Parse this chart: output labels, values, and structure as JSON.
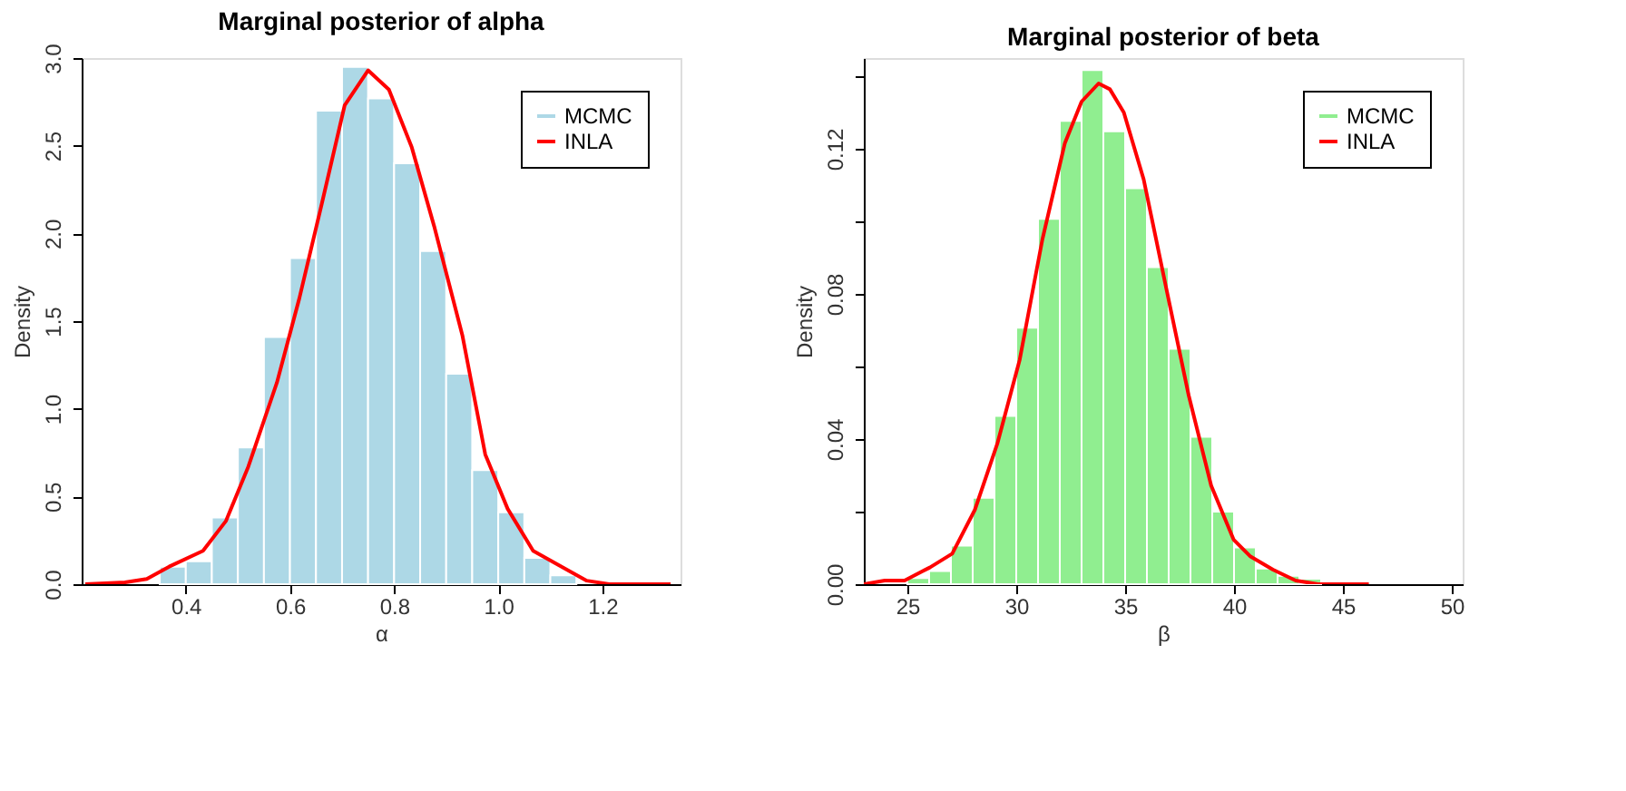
{
  "chart_data": [
    {
      "type": "histogram",
      "title": "Marginal posterior of alpha",
      "xlabel": "α",
      "ylabel": "Density",
      "xlim": [
        0.2,
        1.35
      ],
      "xticks": [
        0.4,
        0.6,
        0.8,
        {
          "value": 1.0,
          "label": "1.0"
        },
        1.2
      ],
      "ylim": [
        0,
        3.0
      ],
      "yticks": [
        {
          "value": 0,
          "label": "0.0"
        },
        0.5,
        {
          "value": 1,
          "label": "1.0"
        },
        1.5,
        {
          "value": 2,
          "label": "2.0"
        },
        2.5,
        {
          "value": 3,
          "label": "3.0"
        }
      ],
      "grid": false,
      "legend": "top right",
      "series": [
        {
          "name": "MCMC",
          "color": "#add8e6",
          "bins": [
            0.35,
            0.4,
            0.45,
            0.5,
            0.55,
            0.6,
            0.65,
            0.7,
            0.75,
            0.8,
            0.85,
            0.9,
            0.95,
            1.0,
            1.05,
            1.1,
            1.15
          ],
          "values": [
            0.1,
            0.13,
            0.38,
            0.78,
            1.41,
            1.86,
            2.7,
            2.95,
            2.77,
            2.4,
            1.9,
            1.2,
            0.65,
            0.41,
            0.15,
            0.05
          ]
        },
        {
          "name": "INLA",
          "type": "line",
          "color": "#ff0000",
          "x": [
            0.207,
            0.283,
            0.325,
            0.368,
            0.433,
            0.477,
            0.52,
            0.575,
            0.618,
            0.662,
            0.705,
            0.75,
            0.79,
            0.834,
            0.877,
            0.931,
            0.975,
            1.018,
            1.067,
            1.127,
            1.17,
            1.213,
            1.331
          ],
          "values": [
            0,
            0.01,
            0.03,
            0.1,
            0.19,
            0.36,
            0.67,
            1.15,
            1.63,
            2.18,
            2.73,
            2.93,
            2.82,
            2.49,
            2.04,
            1.42,
            0.74,
            0.43,
            0.19,
            0.09,
            0.02,
            0,
            0
          ]
        }
      ]
    },
    {
      "type": "histogram",
      "title": "Marginal posterior of beta",
      "xlabel": "β",
      "ylabel": "Density",
      "xlim": [
        23,
        50.5
      ],
      "xticks": [
        25,
        30,
        35,
        40,
        45,
        50
      ],
      "ylim": [
        0,
        0.145
      ],
      "yticks": [
        {
          "value": 0,
          "label": "0.00"
        },
        {
          "value": 0.02,
          "label": null
        },
        0.04,
        {
          "value": 0.06,
          "label": null
        },
        0.08,
        {
          "value": 0.1,
          "label": null
        },
        0.12,
        {
          "value": 0.14,
          "label": null
        }
      ],
      "grid": false,
      "legend": "top right",
      "series": [
        {
          "name": "MCMC",
          "color": "#90ee90",
          "bins": [
            25,
            26,
            27,
            28,
            29,
            30,
            31,
            32,
            33,
            34,
            35,
            36,
            37,
            38,
            39,
            40,
            41,
            42,
            43,
            44
          ],
          "values": [
            0.0017,
            0.0036,
            0.0106,
            0.0238,
            0.0464,
            0.0707,
            0.1007,
            0.1277,
            0.1417,
            0.1248,
            0.1091,
            0.0874,
            0.0649,
            0.0406,
            0.02,
            0.0101,
            0.0043,
            0.0023,
            0.0015
          ]
        },
        {
          "name": "INLA",
          "type": "line",
          "color": "#ff0000",
          "x": [
            23.0,
            23.96,
            24.87,
            26.03,
            27.06,
            28.1,
            29.13,
            30.16,
            31.2,
            32.23,
            33.0,
            33.78,
            34.3,
            34.94,
            35.85,
            36.88,
            37.92,
            38.95,
            39.98,
            40.76,
            41.79,
            42.83,
            43.86,
            46.19
          ],
          "values": [
            0,
            0.001,
            0.001,
            0.0046,
            0.0084,
            0.0205,
            0.0387,
            0.0619,
            0.095,
            0.1215,
            0.133,
            0.138,
            0.1364,
            0.13,
            0.1116,
            0.0818,
            0.052,
            0.0272,
            0.0123,
            0.0076,
            0.004,
            0.001,
            0,
            0
          ]
        }
      ]
    }
  ]
}
